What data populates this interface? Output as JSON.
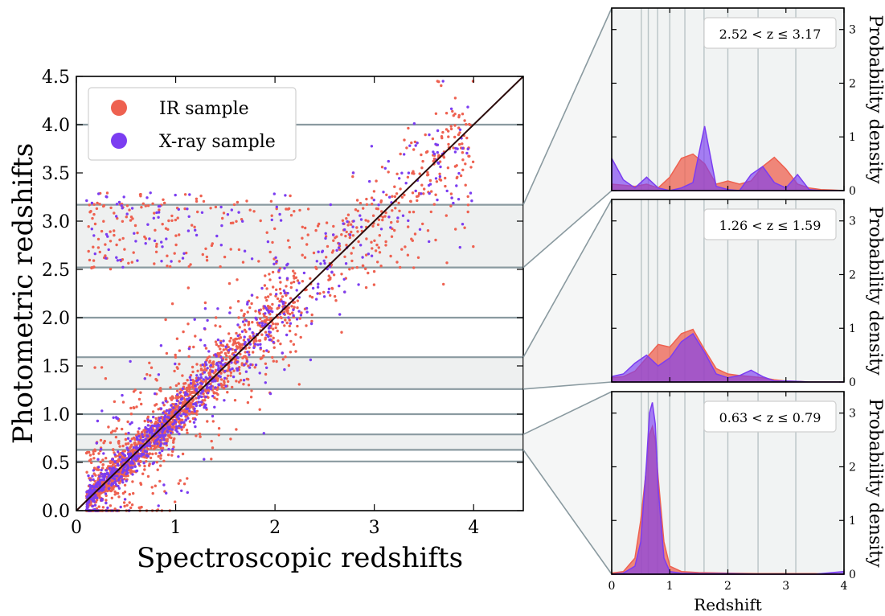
{
  "chart_data": [
    {
      "type": "scatter",
      "xlabel": "Spectroscopic redshifts",
      "ylabel": "Photometric redshifts",
      "xlim": [
        0,
        4.5
      ],
      "ylim": [
        0,
        4.5
      ],
      "xticks": [
        "0",
        "1",
        "2",
        "3",
        "4"
      ],
      "yticks": [
        "0.0",
        "0.5",
        "1.0",
        "1.5",
        "2.0",
        "2.5",
        "3.0",
        "3.5",
        "4.0",
        "4.5"
      ],
      "legend_placement": "upper-left",
      "identity_line": true,
      "bin_edges": [
        0.51,
        0.63,
        0.79,
        1.0,
        1.26,
        1.59,
        2.0,
        2.52,
        3.17,
        4.0
      ],
      "highlighted_bins": [
        [
          2.52,
          3.17
        ],
        [
          1.26,
          1.59
        ],
        [
          0.63,
          0.79
        ]
      ],
      "series": [
        {
          "name": "IR sample",
          "color": "#ee6150",
          "n_points": 2200
        },
        {
          "name": "X-ray sample",
          "color": "#7b3df1",
          "n_points": 900
        }
      ]
    },
    {
      "type": "area",
      "panels": [
        {
          "label": "2.52 < z ≤ 3.17",
          "xlim": [
            0,
            4
          ],
          "ylim": [
            0,
            3.4
          ],
          "x": [
            0,
            0.2,
            0.4,
            0.6,
            0.8,
            1.0,
            1.2,
            1.4,
            1.6,
            1.8,
            2.0,
            2.2,
            2.4,
            2.6,
            2.8,
            3.0,
            3.2,
            3.4,
            3.6,
            3.8,
            4.0
          ],
          "series": [
            {
              "name": "IR sample",
              "values": [
                0.12,
                0.1,
                0.08,
                0.12,
                0.05,
                0.25,
                0.6,
                0.68,
                0.5,
                0.12,
                0.18,
                0.12,
                0.18,
                0.45,
                0.62,
                0.4,
                0.12,
                0.05,
                0.02,
                0.01,
                0
              ]
            },
            {
              "name": "X-ray sample",
              "values": [
                0.6,
                0.2,
                0.05,
                0.25,
                0.05,
                0.0,
                0.05,
                0.15,
                1.2,
                0.08,
                0.02,
                0.0,
                0.3,
                0.45,
                0.15,
                0.05,
                0.3,
                0.02,
                0.0,
                0.0,
                0
              ]
            }
          ]
        },
        {
          "label": "1.26 < z ≤ 1.59",
          "xlim": [
            0,
            4
          ],
          "ylim": [
            0,
            3.4
          ],
          "x": [
            0,
            0.2,
            0.4,
            0.6,
            0.8,
            1.0,
            1.2,
            1.4,
            1.6,
            1.8,
            2.0,
            2.2,
            2.4,
            2.6,
            2.8,
            3.0,
            3.2,
            3.4,
            3.6,
            3.8,
            4.0
          ],
          "series": [
            {
              "name": "IR sample",
              "values": [
                0.08,
                0.1,
                0.2,
                0.45,
                0.7,
                0.65,
                0.9,
                0.98,
                0.6,
                0.25,
                0.15,
                0.12,
                0.1,
                0.08,
                0.04,
                0.02,
                0.01,
                0,
                0,
                0,
                0
              ]
            },
            {
              "name": "X-ray sample",
              "values": [
                0.1,
                0.15,
                0.35,
                0.5,
                0.3,
                0.45,
                0.75,
                0.9,
                0.55,
                0.15,
                0.08,
                0.12,
                0.22,
                0.1,
                0.02,
                0.02,
                0.01,
                0,
                0,
                0,
                0
              ]
            }
          ]
        },
        {
          "label": "0.63 < z ≤ 0.79",
          "xlim": [
            0,
            4
          ],
          "ylim": [
            0,
            3.4
          ],
          "x": [
            0,
            0.2,
            0.4,
            0.5,
            0.6,
            0.65,
            0.7,
            0.75,
            0.8,
            0.9,
            1.0,
            1.2,
            1.5,
            2.0,
            2.5,
            3.0,
            3.5,
            4.0
          ],
          "series": [
            {
              "name": "IR sample",
              "values": [
                0.02,
                0.05,
                0.3,
                1.0,
                2.0,
                2.6,
                2.75,
                2.5,
                1.8,
                0.6,
                0.15,
                0.05,
                0.03,
                0.02,
                0.01,
                0.01,
                0.01,
                0.0
              ]
            },
            {
              "name": "X-ray sample",
              "values": [
                0.0,
                0.02,
                0.15,
                0.6,
                2.1,
                3.0,
                3.2,
                2.8,
                1.6,
                0.3,
                0.05,
                0.02,
                0.01,
                0.01,
                0.0,
                0.0,
                0.0,
                0.05
              ]
            }
          ]
        }
      ],
      "xticks": [
        "0",
        "1",
        "2",
        "3",
        "4"
      ],
      "yticks": [
        "0",
        "1",
        "2",
        "3"
      ],
      "xlabel": "Redshift",
      "ylabel": "Probability density"
    }
  ]
}
